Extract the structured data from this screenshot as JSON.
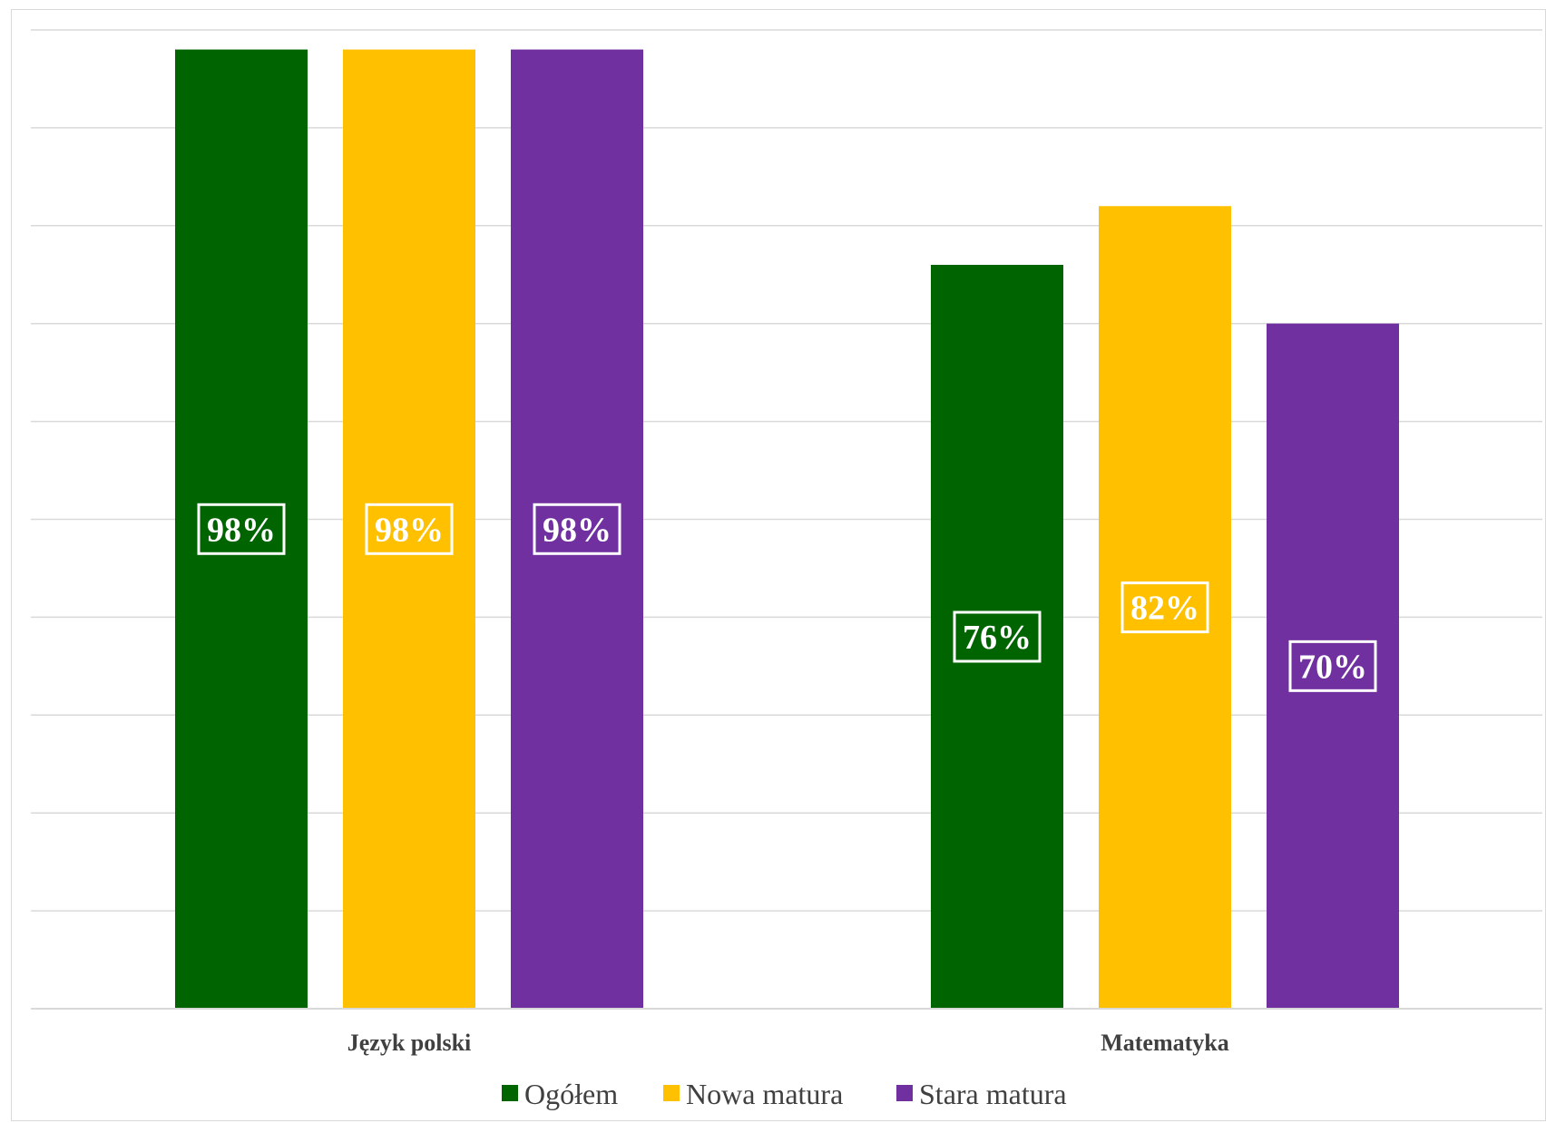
{
  "chart_data": {
    "type": "bar",
    "categories": [
      "Język polski",
      "Matematyka"
    ],
    "series": [
      {
        "name": "Ogółem",
        "values": [
          98,
          76
        ],
        "color": "#006400"
      },
      {
        "name": "Nowa matura",
        "values": [
          98,
          82
        ],
        "color": "#FFC000"
      },
      {
        "name": "Stara matura",
        "values": [
          98,
          70
        ],
        "color": "#7030A0"
      }
    ],
    "data_labels": [
      [
        "98%",
        "76%"
      ],
      [
        "98%",
        "82%"
      ],
      [
        "98%",
        "70%"
      ]
    ],
    "ylim": [
      0,
      100
    ],
    "grid": true,
    "legend": "bottom",
    "colors": {
      "grid": "#d9d9d9",
      "axis_text": "#404040",
      "data_label": "#ffffff"
    }
  }
}
